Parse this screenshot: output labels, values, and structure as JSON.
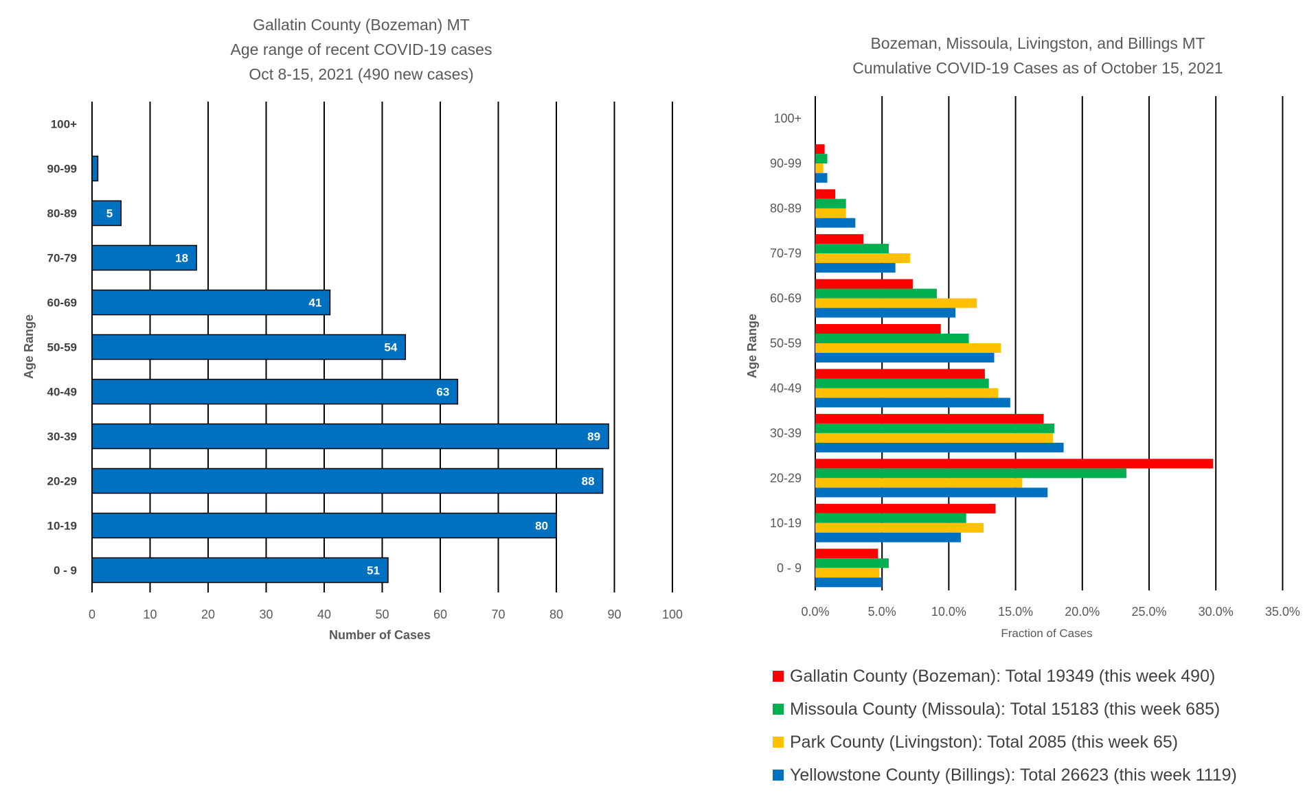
{
  "chart_data": [
    {
      "type": "bar",
      "orientation": "horizontal",
      "title": [
        "Gallatin County (Bozeman) MT",
        "Age range of recent COVID-19 cases",
        "Oct 8-15, 2021 (490 new cases)"
      ],
      "xlabel": "Number of Cases",
      "ylabel": "Age Range",
      "categories": [
        "0 - 9",
        "10-19",
        "20-29",
        "30-39",
        "40-49",
        "50-59",
        "60-69",
        "70-79",
        "80-89",
        "90-99",
        "100+"
      ],
      "values": [
        51,
        80,
        88,
        89,
        63,
        54,
        41,
        18,
        5,
        1,
        0
      ],
      "data_labels": [
        "51",
        "80",
        "88",
        "89",
        "63",
        "54",
        "41",
        "18",
        "5",
        "",
        ""
      ],
      "xlim": [
        0,
        100
      ],
      "xticks": [
        "0",
        "10",
        "20",
        "30",
        "40",
        "50",
        "60",
        "70",
        "80",
        "90",
        "100"
      ],
      "grid": "vertical",
      "colors": {
        "bar": "#0070C0",
        "edge": "#000000",
        "grid": "#000000"
      }
    },
    {
      "type": "bar",
      "orientation": "horizontal",
      "title": [
        "Bozeman, Missoula, Livingston, and Billings MT",
        "Cumulative COVID-19 Cases as of October 15, 2021"
      ],
      "xlabel": "Fraction of Cases",
      "ylabel": "Age Range",
      "categories": [
        "0 - 9",
        "10-19",
        "20-29",
        "30-39",
        "40-49",
        "50-59",
        "60-69",
        "70-79",
        "80-89",
        "90-99",
        "100+"
      ],
      "xlim": [
        0,
        0.35
      ],
      "xticks": [
        "0.0%",
        "5.0%",
        "10.0%",
        "15.0%",
        "20.0%",
        "25.0%",
        "30.0%",
        "35.0%"
      ],
      "grid": "vertical",
      "legend_position": "bottom",
      "series": [
        {
          "name": "Gallatin County (Bozeman): Total 19349 (this week 490)",
          "color": "#FF0000",
          "values": [
            0.047,
            0.135,
            0.298,
            0.171,
            0.127,
            0.094,
            0.073,
            0.036,
            0.015,
            0.007,
            0.0
          ]
        },
        {
          "name": "Missoula County (Missoula): Total 15183 (this week 685)",
          "color": "#00B050",
          "values": [
            0.055,
            0.113,
            0.233,
            0.179,
            0.13,
            0.115,
            0.091,
            0.055,
            0.023,
            0.009,
            0.0
          ]
        },
        {
          "name": "Park County (Livingston): Total 2085 (this week 65)",
          "color": "#FFC000",
          "values": [
            0.048,
            0.126,
            0.155,
            0.178,
            0.137,
            0.139,
            0.121,
            0.071,
            0.023,
            0.006,
            0.0
          ]
        },
        {
          "name": "Yellowstone County (Billings): Total 26623 (this week 1119)",
          "color": "#0070C0",
          "values": [
            0.05,
            0.109,
            0.174,
            0.186,
            0.146,
            0.134,
            0.105,
            0.06,
            0.03,
            0.009,
            0.0
          ]
        }
      ]
    }
  ]
}
